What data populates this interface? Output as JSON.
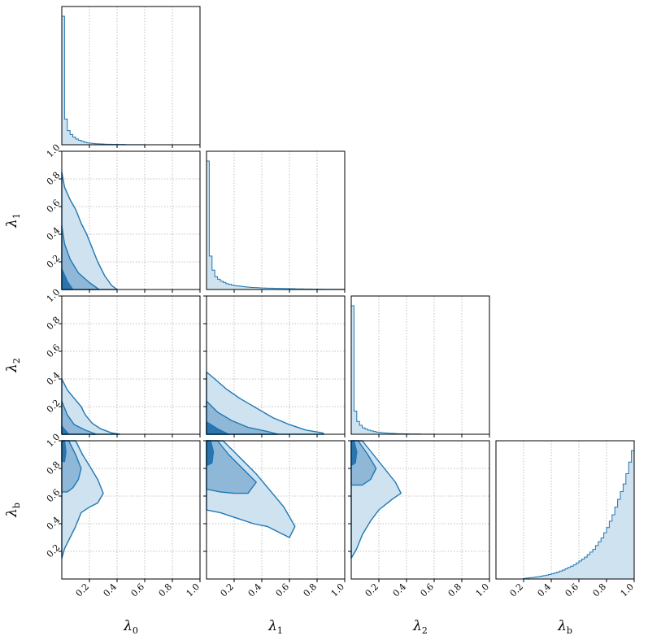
{
  "chart_data": {
    "type": "corner",
    "parameters": [
      {
        "name": "λ",
        "sub": "0"
      },
      {
        "name": "λ",
        "sub": "1"
      },
      {
        "name": "λ",
        "sub": "2"
      },
      {
        "name": "λ",
        "sub": "b"
      }
    ],
    "range": [
      0.0,
      1.0
    ],
    "x_ticks": [
      "0.2",
      "0.4",
      "0.6",
      "0.8",
      "1.0"
    ],
    "y_ticks": [
      "0.2",
      "0.4",
      "0.6",
      "0.8",
      "1.0"
    ],
    "grid": true,
    "colors": {
      "line": "#1f77b4",
      "fill_outer": "#cfe2ef",
      "fill_mid": "#8fb8d8",
      "fill_inner": "#2b74ad",
      "grid": "#b0b0b0"
    },
    "histograms": [
      {
        "param": "λ0",
        "values": [
          1.0,
          0.2,
          0.11,
          0.08,
          0.06,
          0.045,
          0.035,
          0.028,
          0.02,
          0.015,
          0.012,
          0.01,
          0.008,
          0.007,
          0.006,
          0.005,
          0.004,
          0.004,
          0.003,
          0.003,
          0.002,
          0.002,
          0.002,
          0.001,
          0.001,
          0.001,
          0.001,
          0.001,
          0.001,
          0.001,
          0.0,
          0.0,
          0.0,
          0.0,
          0.0,
          0.0,
          0.0,
          0.0,
          0.0,
          0.0,
          0.0,
          0.0,
          0.0,
          0.0,
          0.0,
          0.0,
          0.0,
          0.0,
          0.0,
          0.0
        ]
      },
      {
        "param": "λ1",
        "values": [
          1.0,
          0.26,
          0.15,
          0.1,
          0.08,
          0.065,
          0.055,
          0.045,
          0.04,
          0.035,
          0.03,
          0.028,
          0.025,
          0.022,
          0.02,
          0.018,
          0.016,
          0.015,
          0.014,
          0.013,
          0.012,
          0.011,
          0.01,
          0.01,
          0.009,
          0.009,
          0.008,
          0.008,
          0.007,
          0.007,
          0.006,
          0.006,
          0.005,
          0.005,
          0.005,
          0.004,
          0.004,
          0.004,
          0.003,
          0.003,
          0.003,
          0.003,
          0.002,
          0.002,
          0.002,
          0.002,
          0.002,
          0.002,
          0.002,
          0.002
        ]
      },
      {
        "param": "λ2",
        "values": [
          1.0,
          0.18,
          0.1,
          0.07,
          0.05,
          0.04,
          0.032,
          0.026,
          0.021,
          0.017,
          0.014,
          0.012,
          0.01,
          0.008,
          0.007,
          0.006,
          0.005,
          0.004,
          0.004,
          0.003,
          0.003,
          0.002,
          0.002,
          0.002,
          0.002,
          0.001,
          0.001,
          0.001,
          0.001,
          0.001,
          0.0,
          0.0,
          0.0,
          0.0,
          0.0,
          0.0,
          0.0,
          0.0,
          0.0,
          0.0,
          0.0,
          0.0,
          0.0,
          0.0,
          0.0,
          0.0,
          0.0,
          0.0,
          0.0,
          0.0
        ]
      },
      {
        "param": "λb",
        "values": [
          0.0,
          0.0,
          0.0,
          0.0,
          0.0,
          0.0,
          0.0,
          0.0,
          0.0,
          0.0,
          0.005,
          0.007,
          0.01,
          0.012,
          0.015,
          0.018,
          0.022,
          0.026,
          0.03,
          0.035,
          0.04,
          0.047,
          0.054,
          0.062,
          0.07,
          0.08,
          0.09,
          0.1,
          0.11,
          0.125,
          0.14,
          0.155,
          0.17,
          0.19,
          0.21,
          0.23,
          0.26,
          0.29,
          0.32,
          0.36,
          0.4,
          0.45,
          0.5,
          0.56,
          0.62,
          0.68,
          0.74,
          0.82,
          0.91,
          1.0
        ]
      }
    ],
    "contours_2d": [
      {
        "x": "λ0",
        "y": "λ1",
        "levels": [
          [
            [
              0.0,
              0.0
            ],
            [
              0.0,
              0.85
            ],
            [
              0.02,
              0.74
            ],
            [
              0.06,
              0.65
            ],
            [
              0.1,
              0.58
            ],
            [
              0.14,
              0.48
            ],
            [
              0.18,
              0.4
            ],
            [
              0.22,
              0.3
            ],
            [
              0.26,
              0.2
            ],
            [
              0.31,
              0.1
            ],
            [
              0.36,
              0.03
            ],
            [
              0.4,
              0.0
            ]
          ],
          [
            [
              0.0,
              0.0
            ],
            [
              0.0,
              0.46
            ],
            [
              0.02,
              0.33
            ],
            [
              0.06,
              0.22
            ],
            [
              0.12,
              0.12
            ],
            [
              0.2,
              0.05
            ],
            [
              0.27,
              0.0
            ]
          ],
          [
            [
              0.0,
              0.0
            ],
            [
              0.0,
              0.15
            ],
            [
              0.04,
              0.06
            ],
            [
              0.08,
              0.0
            ]
          ]
        ]
      },
      {
        "x": "λ0",
        "y": "λ2",
        "levels": [
          [
            [
              0.0,
              0.0
            ],
            [
              0.0,
              0.4
            ],
            [
              0.04,
              0.32
            ],
            [
              0.09,
              0.26
            ],
            [
              0.14,
              0.2
            ],
            [
              0.17,
              0.14
            ],
            [
              0.22,
              0.08
            ],
            [
              0.28,
              0.04
            ],
            [
              0.36,
              0.01
            ],
            [
              0.42,
              0.0
            ]
          ],
          [
            [
              0.0,
              0.0
            ],
            [
              0.0,
              0.24
            ],
            [
              0.04,
              0.14
            ],
            [
              0.09,
              0.07
            ],
            [
              0.17,
              0.03
            ],
            [
              0.25,
              0.0
            ]
          ],
          [
            [
              0.0,
              0.0
            ],
            [
              0.0,
              0.06
            ],
            [
              0.05,
              0.0
            ]
          ]
        ]
      },
      {
        "x": "λ1",
        "y": "λ2",
        "levels": [
          [
            [
              0.0,
              0.0
            ],
            [
              0.0,
              0.45
            ],
            [
              0.06,
              0.4
            ],
            [
              0.14,
              0.33
            ],
            [
              0.24,
              0.26
            ],
            [
              0.36,
              0.19
            ],
            [
              0.48,
              0.12
            ],
            [
              0.6,
              0.07
            ],
            [
              0.72,
              0.03
            ],
            [
              0.84,
              0.01
            ],
            [
              0.85,
              0.0
            ]
          ],
          [
            [
              0.0,
              0.0
            ],
            [
              0.0,
              0.24
            ],
            [
              0.08,
              0.16
            ],
            [
              0.18,
              0.1
            ],
            [
              0.3,
              0.05
            ],
            [
              0.44,
              0.02
            ],
            [
              0.52,
              0.0
            ]
          ],
          [
            [
              0.0,
              0.0
            ],
            [
              0.0,
              0.09
            ],
            [
              0.08,
              0.04
            ],
            [
              0.16,
              0.0
            ]
          ]
        ]
      },
      {
        "x": "λ0",
        "y": "λb",
        "levels": [
          [
            [
              0.0,
              1.0
            ],
            [
              0.1,
              1.0
            ],
            [
              0.15,
              0.9
            ],
            [
              0.2,
              0.82
            ],
            [
              0.26,
              0.72
            ],
            [
              0.3,
              0.62
            ],
            [
              0.26,
              0.55
            ],
            [
              0.2,
              0.52
            ],
            [
              0.14,
              0.48
            ],
            [
              0.1,
              0.38
            ],
            [
              0.06,
              0.3
            ],
            [
              0.02,
              0.22
            ],
            [
              0.0,
              0.15
            ]
          ],
          [
            [
              0.0,
              1.0
            ],
            [
              0.05,
              1.0
            ],
            [
              0.1,
              0.9
            ],
            [
              0.14,
              0.8
            ],
            [
              0.12,
              0.72
            ],
            [
              0.08,
              0.66
            ],
            [
              0.04,
              0.63
            ],
            [
              0.0,
              0.63
            ]
          ],
          [
            [
              0.0,
              1.0
            ],
            [
              0.02,
              1.0
            ],
            [
              0.03,
              0.92
            ],
            [
              0.02,
              0.85
            ],
            [
              0.0,
              0.85
            ]
          ]
        ]
      },
      {
        "x": "λ1",
        "y": "λb",
        "levels": [
          [
            [
              0.0,
              1.0
            ],
            [
              0.12,
              1.0
            ],
            [
              0.24,
              0.88
            ],
            [
              0.36,
              0.76
            ],
            [
              0.46,
              0.64
            ],
            [
              0.56,
              0.52
            ],
            [
              0.64,
              0.38
            ],
            [
              0.6,
              0.3
            ],
            [
              0.52,
              0.34
            ],
            [
              0.44,
              0.38
            ],
            [
              0.34,
              0.4
            ],
            [
              0.22,
              0.44
            ],
            [
              0.1,
              0.48
            ],
            [
              0.0,
              0.5
            ]
          ],
          [
            [
              0.0,
              1.0
            ],
            [
              0.08,
              1.0
            ],
            [
              0.16,
              0.9
            ],
            [
              0.26,
              0.8
            ],
            [
              0.36,
              0.7
            ],
            [
              0.3,
              0.62
            ],
            [
              0.2,
              0.62
            ],
            [
              0.1,
              0.63
            ],
            [
              0.0,
              0.65
            ]
          ],
          [
            [
              0.0,
              1.0
            ],
            [
              0.03,
              1.0
            ],
            [
              0.05,
              0.92
            ],
            [
              0.04,
              0.84
            ],
            [
              0.0,
              0.82
            ]
          ]
        ]
      },
      {
        "x": "λ2",
        "y": "λb",
        "levels": [
          [
            [
              0.0,
              1.0
            ],
            [
              0.08,
              1.0
            ],
            [
              0.16,
              0.9
            ],
            [
              0.24,
              0.8
            ],
            [
              0.32,
              0.7
            ],
            [
              0.36,
              0.62
            ],
            [
              0.3,
              0.58
            ],
            [
              0.2,
              0.5
            ],
            [
              0.14,
              0.42
            ],
            [
              0.08,
              0.32
            ],
            [
              0.04,
              0.22
            ],
            [
              0.0,
              0.15
            ]
          ],
          [
            [
              0.0,
              1.0
            ],
            [
              0.05,
              1.0
            ],
            [
              0.12,
              0.9
            ],
            [
              0.18,
              0.8
            ],
            [
              0.14,
              0.72
            ],
            [
              0.08,
              0.68
            ],
            [
              0.0,
              0.68
            ]
          ],
          [
            [
              0.0,
              1.0
            ],
            [
              0.02,
              1.0
            ],
            [
              0.04,
              0.92
            ],
            [
              0.03,
              0.84
            ],
            [
              0.0,
              0.82
            ]
          ]
        ]
      }
    ]
  }
}
